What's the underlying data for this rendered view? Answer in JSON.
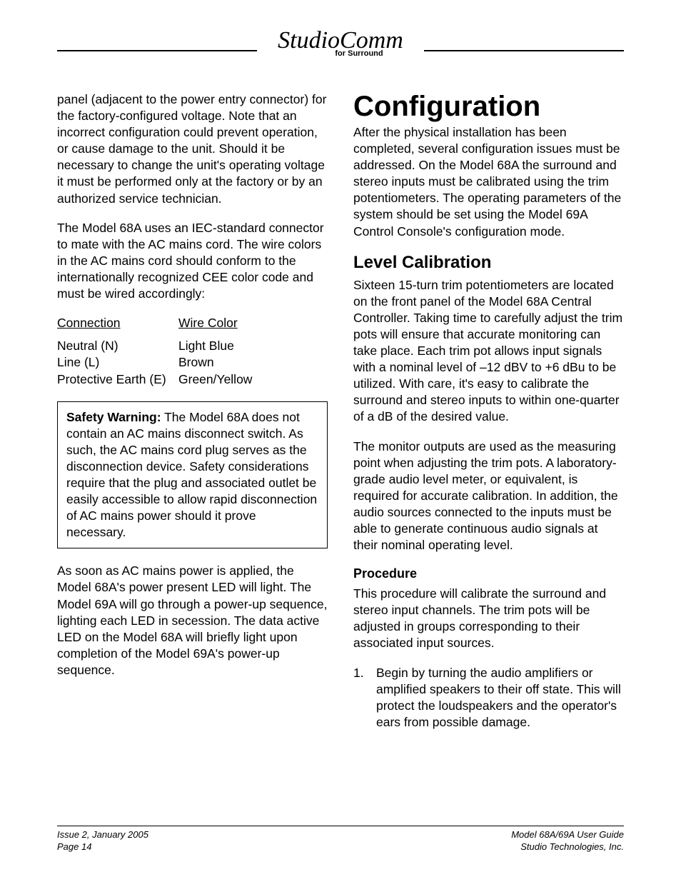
{
  "header": {
    "logo_script": "StudioComm",
    "logo_sub": "for Surround"
  },
  "left_column": {
    "para1": "panel (adjacent to the power entry connector) for the factory-configured voltage. Note that an incorrect configuration could prevent operation, or cause damage to the unit. Should it be necessary to change the unit's operating voltage it must be performed only at the factory or by an authorized service technician.",
    "para2": "The Model 68A uses an IEC-standard connector to mate with the AC mains cord. The wire colors in the AC mains cord should conform to the internationally recognized CEE color code and must be wired accordingly:",
    "wire_table": {
      "head_left": "Connection",
      "head_right": "Wire Color",
      "rows": [
        {
          "left": "Neutral (N)",
          "right": "Light Blue"
        },
        {
          "left": "Line (L)",
          "right": "Brown"
        },
        {
          "left": "Protective Earth (E)",
          "right": "Green/Yellow"
        }
      ]
    },
    "warning_label": "Safety Warning:",
    "warning_text": " The Model 68A does not contain an AC mains disconnect switch. As such, the AC mains cord plug serves as the disconnection device. Safety considerations require that the plug and associated outlet be easily accessible to allow rapid disconnection of AC mains power should it prove necessary.",
    "para3": "As soon as AC mains power is applied, the Model 68A's power present LED will light. The Model 69A will go through a power-up sequence, lighting each LED in secession. The data active LED on the Model 68A will briefly light upon completion of the Model 69A's power-up sequence."
  },
  "right_column": {
    "h1": "Configuration",
    "para1": "After the physical installation has been completed, several configuration issues must be addressed. On the Model 68A the surround and stereo inputs must be calibrated using the trim potentiometers. The operating parameters of the system should be set using the Model 69A Control Console's configuration mode.",
    "h2": "Level Calibration",
    "para2": "Sixteen 15-turn trim potentiometers are located on the front panel of the Model 68A Central Controller. Taking time to carefully adjust the trim pots will ensure that accurate monitoring can take place. Each trim pot allows input signals with a nominal level of –12 dBV to +6 dBu to be utilized. With care, it's easy to calibrate the surround and stereo inputs to within one-quarter of a dB of the desired value.",
    "para3": "The monitor outputs are used as the measuring point when adjusting the trim pots. A laboratory-grade audio level meter, or equivalent, is required for accurate calibration. In addition, the audio sources connected to the inputs must be able to generate continuous audio signals at their nominal operating level.",
    "h3": "Procedure",
    "para4": "This procedure will calibrate the surround and stereo input channels. The trim pots will be adjusted in groups corresponding to their associated input sources.",
    "proc_items": [
      {
        "num": "1.",
        "text": "Begin by turning the audio amplifiers or amplified speakers to their off state. This will protect the loudspeakers and the operator's ears from possible damage."
      }
    ]
  },
  "footer": {
    "left1": "Issue 2, January 2005",
    "left2": "Page 14",
    "right1": "Model 68A/69A User Guide",
    "right2": "Studio Technologies, Inc."
  }
}
